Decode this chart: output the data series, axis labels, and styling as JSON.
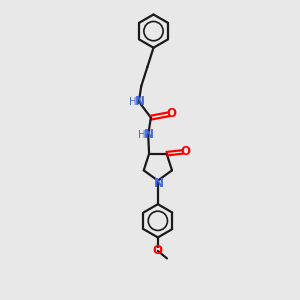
{
  "bg_color": "#e8e8e8",
  "bond_color": "#1a1a1a",
  "N_color": "#4169E1",
  "O_color": "#FF0000",
  "font_size_atom": 8.5,
  "line_width": 1.6,
  "figsize": [
    3.0,
    3.0
  ],
  "dpi": 100,
  "xlim": [
    0,
    10
  ],
  "ylim": [
    0,
    17
  ]
}
